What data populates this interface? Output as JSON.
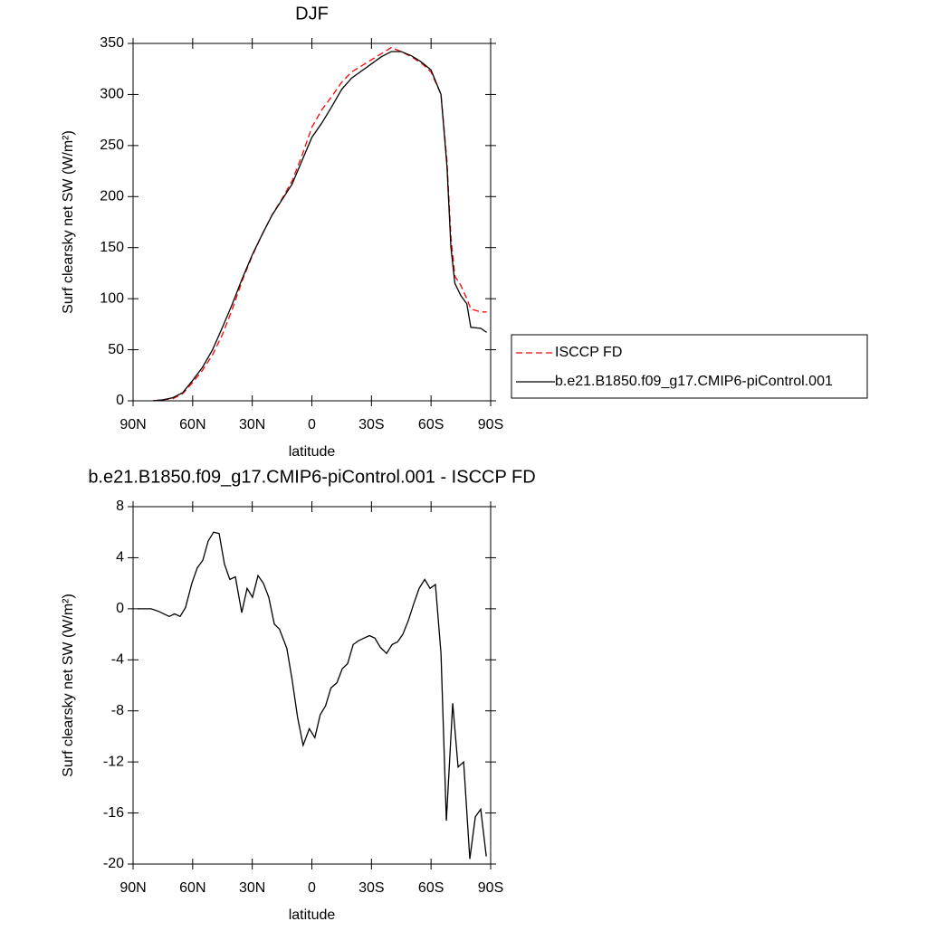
{
  "chart_data": [
    {
      "type": "line",
      "title": "DJF",
      "x_label": "latitude",
      "y_label": "Surf clearsky net SW (W/m²)",
      "x": [
        80,
        75,
        70,
        65,
        60,
        55,
        50,
        45,
        40,
        35,
        30,
        25,
        20,
        15,
        10,
        5,
        0,
        -5,
        -10,
        -15,
        -20,
        -25,
        -30,
        -35,
        -40,
        -45,
        -50,
        -55,
        -60,
        -65,
        -68,
        -70,
        -72,
        -75,
        -78,
        -80,
        -85,
        -88
      ],
      "series": [
        {
          "name": "ISCCP FD",
          "color": "#ff0000",
          "dash": true,
          "values": [
            0,
            1,
            2,
            7,
            18,
            30,
            45,
            65,
            90,
            118,
            142,
            163,
            182,
            198,
            215,
            240,
            268,
            285,
            298,
            312,
            322,
            328,
            334,
            340,
            346,
            342,
            337,
            331,
            322,
            300,
            235,
            160,
            122,
            113,
            100,
            90,
            87,
            87
          ]
        },
        {
          "name": "b.e21.B1850.f09_g17.CMIP6-piControl.001",
          "color": "#000000",
          "dash": false,
          "values": [
            0,
            1,
            3,
            8,
            20,
            33,
            50,
            72,
            95,
            120,
            143,
            163,
            182,
            197,
            212,
            235,
            258,
            272,
            288,
            305,
            316,
            323,
            330,
            337,
            342,
            342,
            338,
            332,
            324,
            300,
            230,
            150,
            115,
            103,
            95,
            72,
            71,
            67
          ]
        }
      ],
      "xlim": [
        90,
        -90
      ],
      "xticks": [
        {
          "value": 90,
          "label": "90N"
        },
        {
          "value": 60,
          "label": "60N"
        },
        {
          "value": 30,
          "label": "30N"
        },
        0,
        {
          "value": -30,
          "label": "30S"
        },
        {
          "value": -60,
          "label": "60S"
        },
        {
          "value": -90,
          "label": "90S"
        }
      ],
      "ylim": [
        0,
        350
      ],
      "yticks": [
        0,
        50,
        100,
        150,
        200,
        250,
        300,
        350
      ],
      "legend": "right"
    },
    {
      "type": "line",
      "title": "b.e21.B1850.f09_g17.CMIP6-piControl.001 - ISCCP FD",
      "x_label": "latitude",
      "y_label": "Surf clearsky net SW (W/m²)",
      "x": [
        87.7,
        80.9,
        77.2,
        71.8,
        69.1,
        66.3,
        63.6,
        60.4,
        57.7,
        54.9,
        52.2,
        49.5,
        46.7,
        44,
        41.3,
        38.5,
        35.3,
        32.6,
        29.9,
        27.1,
        24.4,
        21.7,
        18.9,
        16.3,
        12.6,
        9.9,
        7.2,
        4.4,
        1.3,
        -1.5,
        -4.2,
        -6.9,
        -9.6,
        -12.6,
        -15.3,
        -18,
        -20.8,
        -23.5,
        -26.2,
        -29,
        -31.7,
        -34.4,
        -37.6,
        -40.4,
        -43.1,
        -45.8,
        -48.6,
        -51.3,
        -54,
        -56.8,
        -59.5,
        -62.2,
        -65,
        -67.7,
        -70.9,
        -73.6,
        -76.4,
        -79.5,
        -82.3,
        -85,
        -87.8
      ],
      "series": [
        {
          "color": "#000000",
          "dash": false,
          "values": [
            0,
            0,
            -0.2,
            -0.6,
            -0.4,
            -0.6,
            0.1,
            2,
            3.2,
            3.8,
            5.3,
            6,
            5.9,
            3.5,
            2.3,
            2.5,
            -0.3,
            1.6,
            0.9,
            2.6,
            2,
            0.9,
            -1.2,
            -1.6,
            -3.1,
            -5.6,
            -8.5,
            -10.7,
            -9.4,
            -10.1,
            -8.3,
            -7.6,
            -6.2,
            -5.8,
            -4.7,
            -4.3,
            -2.8,
            -2.5,
            -2.3,
            -2.1,
            -2.3,
            -3,
            -3.5,
            -2.8,
            -2.6,
            -2,
            -0.9,
            0.4,
            1.6,
            2.3,
            1.6,
            1.9,
            -3.5,
            -16.6,
            -7.4,
            -12.4,
            -12,
            -19.6,
            -16.3,
            -15.7,
            -19.4
          ]
        }
      ],
      "xlim": [
        90,
        -90
      ],
      "xticks": [
        {
          "value": 90,
          "label": "90N"
        },
        {
          "value": 60,
          "label": "60N"
        },
        {
          "value": 30,
          "label": "30N"
        },
        0,
        {
          "value": -30,
          "label": "30S"
        },
        {
          "value": -60,
          "label": "60S"
        },
        {
          "value": -90,
          "label": "90S"
        }
      ],
      "ylim": [
        -20,
        8
      ],
      "yticks": [
        8,
        4,
        0,
        -4,
        -8,
        -12,
        -16,
        -20
      ]
    }
  ]
}
